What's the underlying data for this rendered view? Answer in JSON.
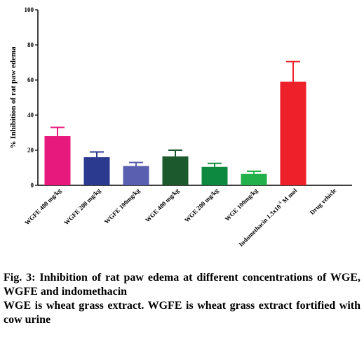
{
  "chart_data": {
    "type": "bar",
    "ylabel": "% Inhibition of rat paw edema",
    "ylim": [
      0,
      100
    ],
    "yticks": [
      0,
      20,
      40,
      60,
      80,
      100
    ],
    "categories": [
      "WGFE 400 mg/kg",
      "WGFE 200 mg/kg",
      "WGFE 100mg/kg",
      "WGE 400 mg/kg",
      "WGE 200 mg/kg",
      "WGE 100mg/kg",
      "Indomethacin 1.3x10",
      "Drug vehicle"
    ],
    "category_suffix": {
      "index": 6,
      "sup": "-5",
      "after": " M mol"
    },
    "values": [
      28,
      16,
      11,
      16.5,
      10.5,
      6.5,
      59,
      0
    ],
    "errors": [
      5,
      3,
      2,
      3.5,
      2,
      1.5,
      11.5,
      0
    ],
    "colors": [
      "#e8197d",
      "#2b3a8f",
      "#5a5fb0",
      "#1c5a2e",
      "#0e8a40",
      "#22b04a",
      "#ee2029",
      "#ffffff"
    ]
  },
  "caption": {
    "fig_label": "Fig. 3:",
    "title": "Inhibition of rat paw edema at different concentrations of WGE, WGFE and indomethacin",
    "note": "WGE is wheat grass extract. WGFE is wheat grass extract fortified with cow urine"
  }
}
